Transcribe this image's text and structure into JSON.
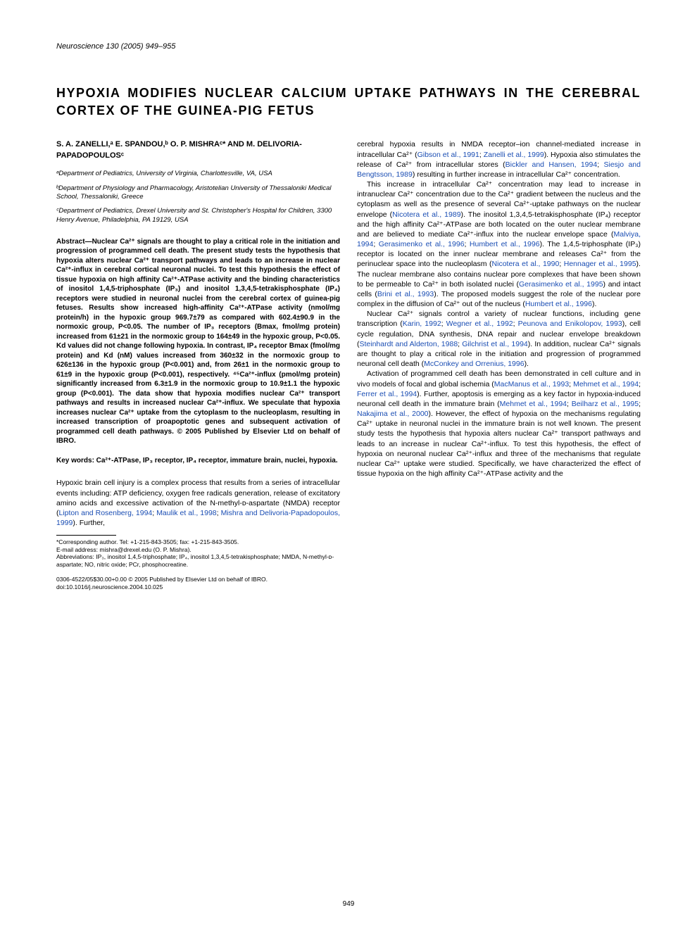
{
  "journal_header": "Neuroscience 130 (2005) 949–955",
  "title": "HYPOXIA MODIFIES NUCLEAR CALCIUM UPTAKE PATHWAYS IN THE CEREBRAL CORTEX OF THE GUINEA-PIG FETUS",
  "authors": "S. A. ZANELLI,ᵃ E. SPANDOU,ᵇ O. P. MISHRAᶜ* AND M. DELIVORIA-PAPADOPOULOSᶜ",
  "affiliations": [
    "ᵃDepartment of Pediatrics, University of Virginia, Charlottesville, VA, USA",
    "ᵇDepartment of Physiology and Pharmacology, Aristotelian University of Thessaloniki Medical School, Thessaloniki, Greece",
    "ᶜDepartment of Pediatrics, Drexel University and St. Christopher's Hospital for Children, 3300 Henry Avenue, Philadelphia, PA 19129, USA"
  ],
  "abstract": "Abstract—Nuclear Ca²⁺ signals are thought to play a critical role in the initiation and progression of programmed cell death. The present study tests the hypothesis that hypoxia alters nuclear Ca²⁺ transport pathways and leads to an increase in nuclear Ca²⁺-influx in cerebral cortical neuronal nuclei. To test this hypothesis the effect of tissue hypoxia on high affinity Ca²⁺-ATPase activity and the binding characteristics of inositol 1,4,5-triphosphate (IP₃) and inositol 1,3,4,5-tetrakisphosphate (IP₄) receptors were studied in neuronal nuclei from the cerebral cortex of guinea-pig fetuses. Results show increased high-affinity Ca²⁺-ATPase activity (nmol/mg protein/h) in the hypoxic group 969.7±79 as compared with 602.4±90.9 in the normoxic group, P<0.05. The number of IP₃ receptors (Bmax, fmol/mg protein) increased from 61±21 in the normoxic group to 164±49 in the hypoxic group, P<0.05. Kd values did not change following hypoxia. In contrast, IP₄ receptor Bmax (fmol/mg protein) and Kd (nM) values increased from 360±32 in the normoxic group to 626±136 in the hypoxic group (P<0.001) and, from 26±1 in the normoxic group to 61±9 in the hypoxic group (P<0.001), respectively. ⁴⁵Ca²⁺-influx (pmol/mg protein) significantly increased from 6.3±1.9 in the normoxic group to 10.9±1.1 the hypoxic group (P<0.001). The data show that hypoxia modifies nuclear Ca²⁺ transport pathways and results in increased nuclear Ca²⁺-influx. We speculate that hypoxia increases nuclear Ca²⁺ uptake from the cytoplasm to the nucleoplasm, resulting in increased transcription of proapoptotic genes and subsequent activation of programmed cell death pathways. © 2005 Published by Elsevier Ltd on behalf of IBRO.",
  "keywords": "Key words: Ca²⁺-ATPase, IP₃ receptor, IP₄ receptor, immature brain, nuclei, hypoxia.",
  "intro_p1_a": "Hypoxic brain cell injury is a complex process that results from a series of intracellular events including: ATP deficiency, oxygen free radicals generation, release of excitatory amino acids and excessive activation of the N-methyl-ᴅ-aspartate (NMDA) receptor (",
  "intro_p1_link1": "Lipton and Rosenberg, 1994",
  "intro_p1_b": "; ",
  "intro_p1_link2": "Maulik et al., 1998",
  "intro_p1_c": "; ",
  "intro_p1_link3": "Mishra and Delivoria-Papadopoulos, 1999",
  "intro_p1_d": "). Further,",
  "footnote_corresp": "*Corresponding author. Tel: +1-215-843-3505; fax: +1-215-843-3505.",
  "footnote_email": "E-mail address: mishra@drexel.edu (O. P. Mishra).",
  "footnote_abbrev": "Abbreviations: IP₃, inositol 1,4,5-triphosphate; IP₄, inositol 1,3,4,5-tetrakisphosphate; NMDA, N-methyl-ᴅ-aspartate; NO, nitric oxide; PCr, phosphocreatine.",
  "doi_line": "0306-4522/05$30.00+0.00 © 2005 Published by Elsevier Ltd on behalf of IBRO. doi:10.1016/j.neuroscience.2004.10.025",
  "col2_p1_a": "cerebral hypoxia results in NMDA receptor–ion channel-mediated increase in intracellular Ca²⁺ (",
  "col2_p1_link1": "Gibson et al., 1991",
  "col2_p1_b": "; ",
  "col2_p1_link2": "Zanelli et al., 1999",
  "col2_p1_c": "). Hypoxia also stimulates the release of Ca²⁺ from intracellular stores (",
  "col2_p1_link3": "Bickler and Hansen, 1994",
  "col2_p1_d": "; ",
  "col2_p1_link4": "Siesjo and Bengtsson, 1989",
  "col2_p1_e": ") resulting in further increase in intracellular Ca²⁺ concentration.",
  "col2_p2_a": "This increase in intracellular Ca²⁺ concentration may lead to increase in intranuclear Ca²⁺ concentration due to the Ca²⁺ gradient between the nucleus and the cytoplasm as well as the presence of several Ca²⁺-uptake pathways on the nuclear envelope (",
  "col2_p2_link1": "Nicotera et al., 1989",
  "col2_p2_b": "). The inositol 1,3,4,5-tetrakisphosphate (IP₄) receptor and the high affinity Ca²⁺-ATPase are both located on the outer nuclear membrane and are believed to mediate Ca²⁺-influx into the nuclear envelope space (",
  "col2_p2_link2": "Malviya, 1994",
  "col2_p2_c": "; ",
  "col2_p2_link3": "Gerasimenko et al., 1996",
  "col2_p2_d": "; ",
  "col2_p2_link4": "Humbert et al., 1996",
  "col2_p2_e": "). The 1,4,5-triphosphate (IP₃) receptor is located on the inner nuclear membrane and releases Ca²⁺ from the perinuclear space into the nucleoplasm (",
  "col2_p2_link5": "Nicotera et al., 1990",
  "col2_p2_f": "; ",
  "col2_p2_link6": "Hennager et al., 1995",
  "col2_p2_g": "). The nuclear membrane also contains nuclear pore complexes that have been shown to be permeable to Ca²⁺ in both isolated nuclei (",
  "col2_p2_link7": "Gerasimenko et al., 1995",
  "col2_p2_h": ") and intact cells (",
  "col2_p2_link8": "Brini et al., 1993",
  "col2_p2_i": "). The proposed models suggest the role of the nuclear pore complex in the diffusion of Ca²⁺ out of the nucleus (",
  "col2_p2_link9": "Humbert et al., 1996",
  "col2_p2_j": ").",
  "col2_p3_a": "Nuclear Ca²⁺ signals control a variety of nuclear functions, including gene transcription (",
  "col2_p3_link1": "Karin, 1992",
  "col2_p3_b": "; ",
  "col2_p3_link2": "Wegner et al., 1992",
  "col2_p3_c": "; ",
  "col2_p3_link3": "Peunova and Enikolopov, 1993",
  "col2_p3_d": "), cell cycle regulation, DNA synthesis, DNA repair and nuclear envelope breakdown (",
  "col2_p3_link4": "Steinhardt and Alderton, 1988",
  "col2_p3_e": "; ",
  "col2_p3_link5": "Gilchrist et al., 1994",
  "col2_p3_f": "). In addition, nuclear Ca²⁺ signals are thought to play a critical role in the initiation and progression of programmed neuronal cell death (",
  "col2_p3_link6": "McConkey and Orrenius, 1996",
  "col2_p3_g": ").",
  "col2_p4_a": "Activation of programmed cell death has been demonstrated in cell culture and in vivo models of focal and global ischemia (",
  "col2_p4_link1": "MacManus et al., 1993",
  "col2_p4_b": "; ",
  "col2_p4_link2": "Mehmet et al., 1994",
  "col2_p4_c": "; ",
  "col2_p4_link3": "Ferrer et al., 1994",
  "col2_p4_d": "). Further, apoptosis is emerging as a key factor in hypoxia-induced neuronal cell death in the immature brain (",
  "col2_p4_link4": "Mehmet et al., 1994",
  "col2_p4_e": "; ",
  "col2_p4_link5": "Beilharz et al., 1995",
  "col2_p4_f": "; ",
  "col2_p4_link6": "Nakajima et al., 2000",
  "col2_p4_g": "). However, the effect of hypoxia on the mechanisms regulating Ca²⁺ uptake in neuronal nuclei in the immature brain is not well known. The present study tests the hypothesis that hypoxia alters nuclear Ca²⁺ transport pathways and leads to an increase in nuclear Ca²⁺-influx. To test this hypothesis, the effect of hypoxia on neuronal nuclear Ca²⁺-influx and three of the mechanisms that regulate nuclear Ca²⁺ uptake were studied. Specifically, we have characterized the effect of tissue hypoxia on the high affinity Ca²⁺-ATPase activity and the",
  "page_number": "949"
}
